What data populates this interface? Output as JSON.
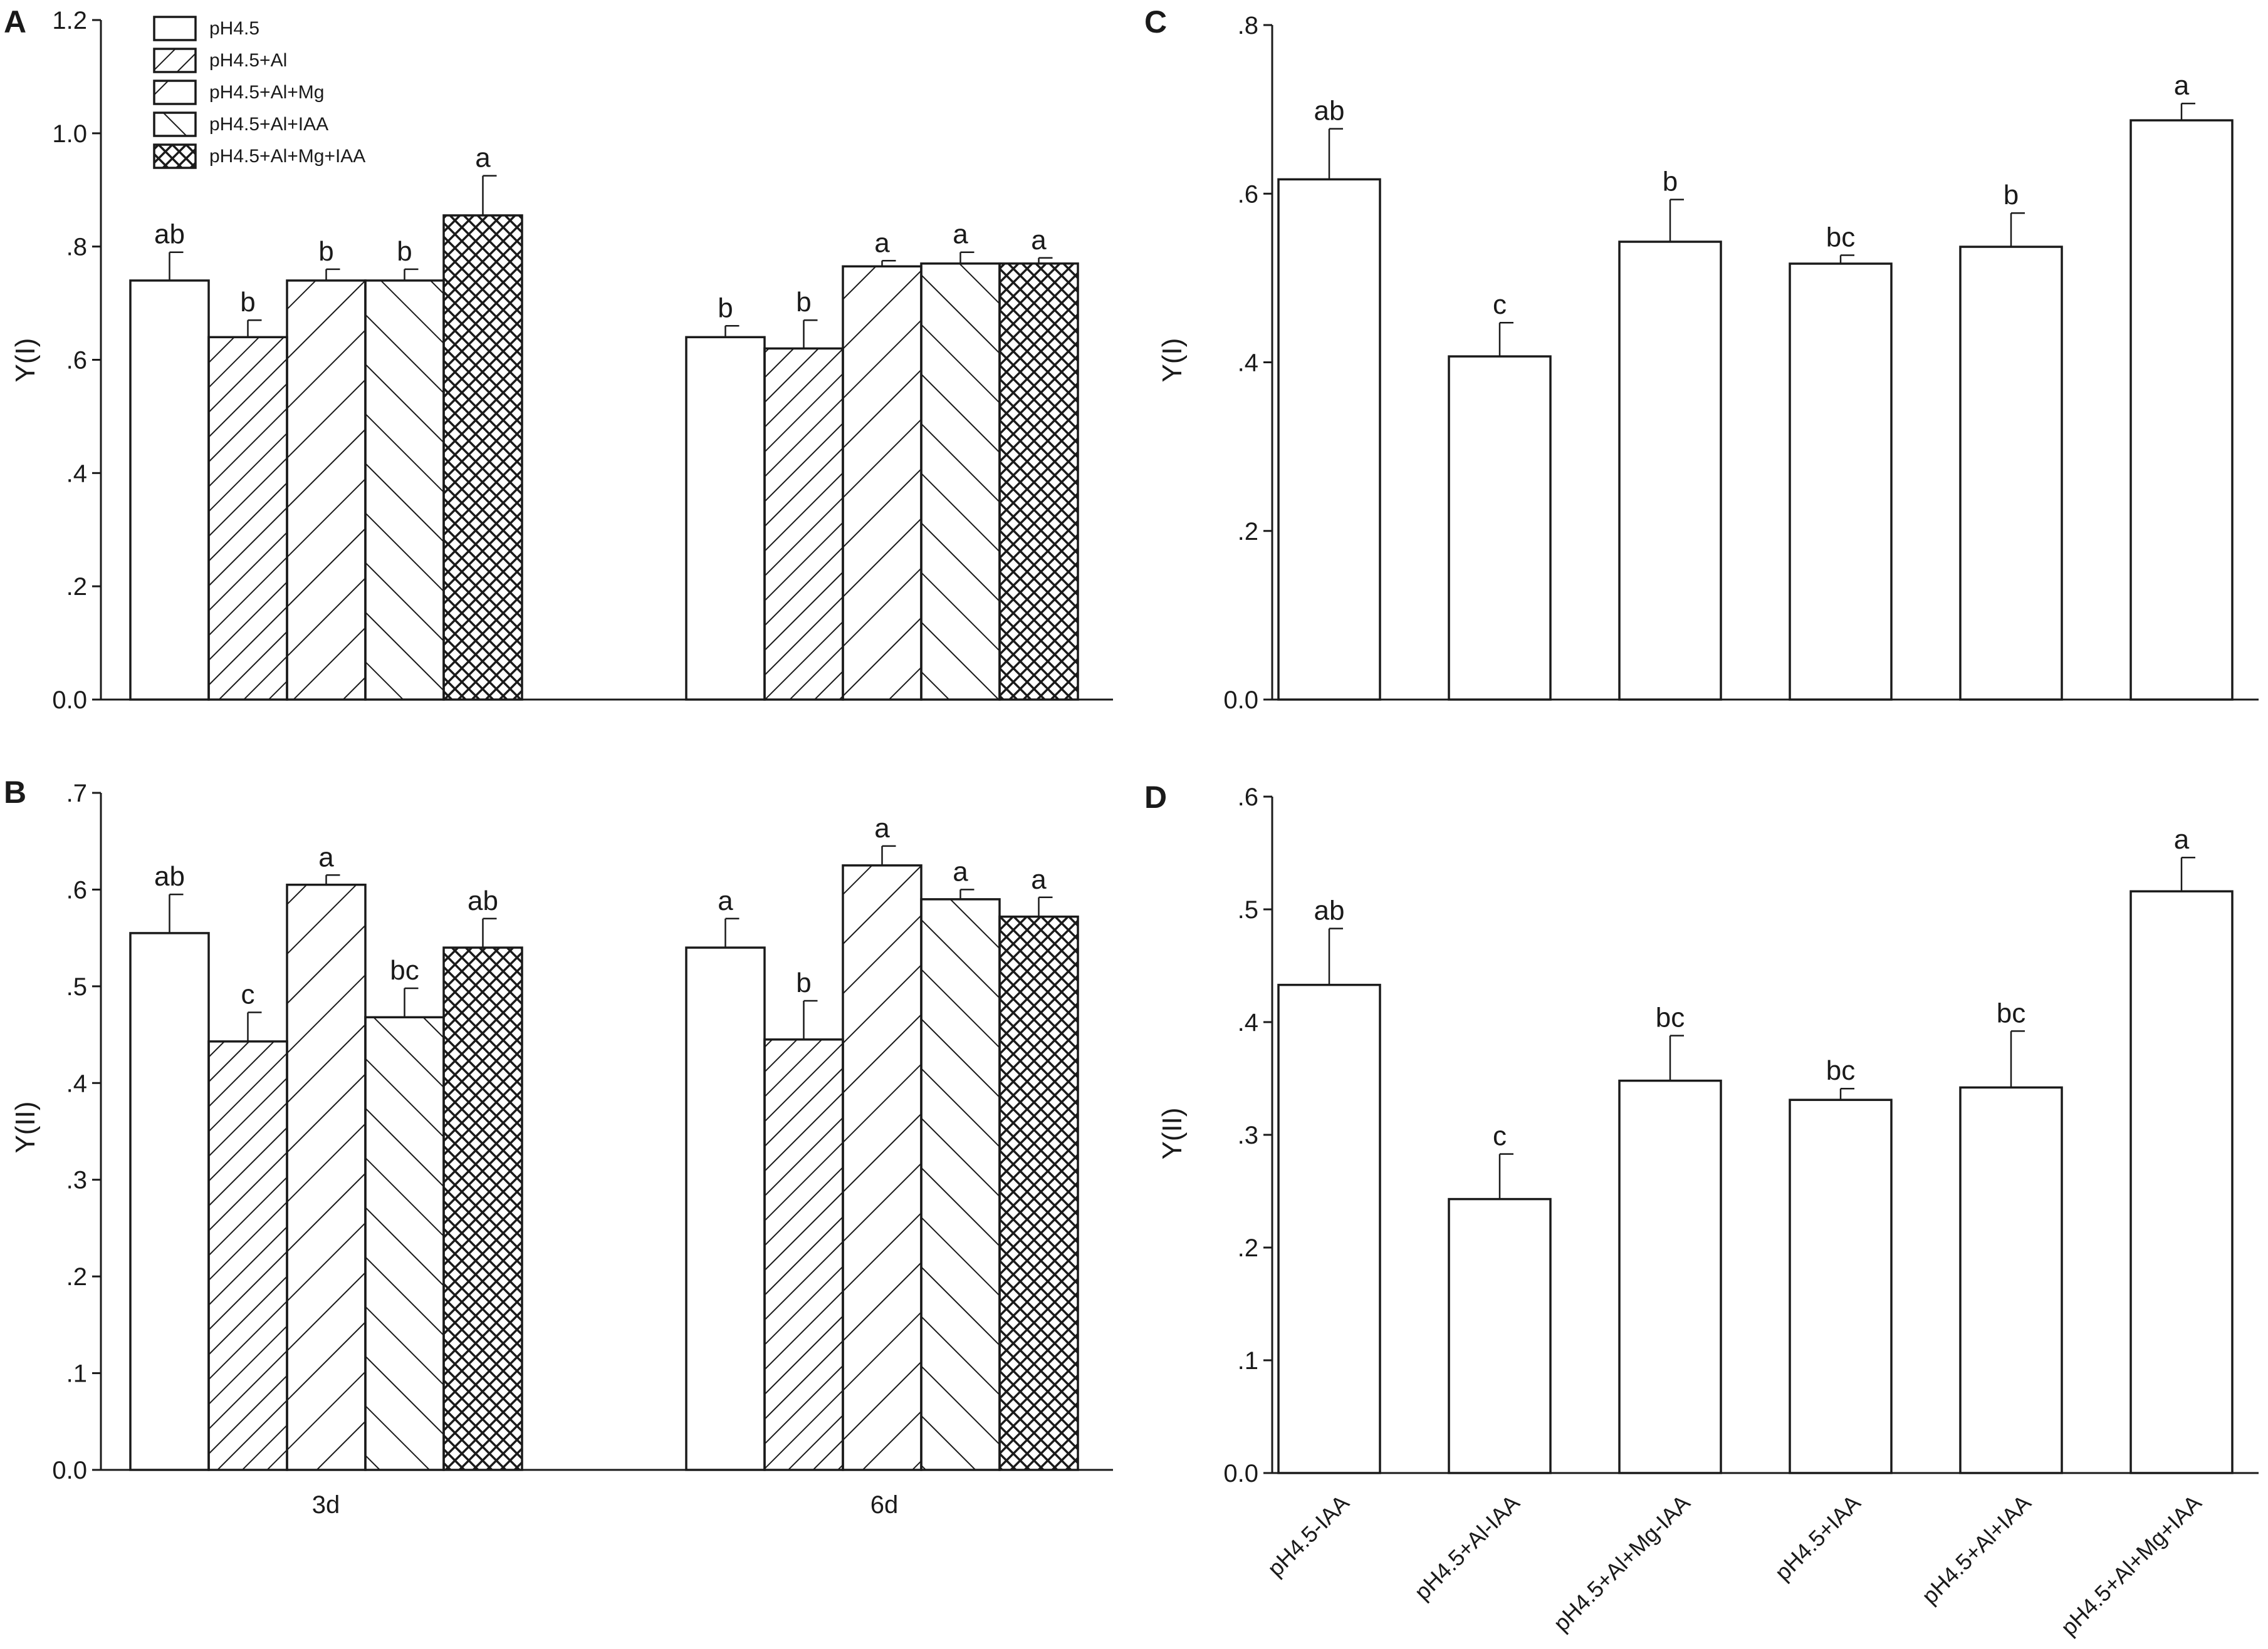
{
  "legend": {
    "items": [
      "pH4.5",
      "pH4.5+Al",
      "pH4.5+Al+Mg",
      "pH4.5+Al+IAA",
      "pH4.5+Al+Mg+IAA"
    ]
  },
  "chart_data": [
    {
      "panel": "A",
      "type": "bar",
      "ylabel": "Y(I)",
      "ylim": [
        0.0,
        1.2
      ],
      "yticks": [
        "0.0",
        ".2",
        ".4",
        ".6",
        ".8",
        "1.0",
        "1.2"
      ],
      "categories": [
        "3d",
        "6d"
      ],
      "series": [
        {
          "name": "pH4.5",
          "values": [
            0.74,
            0.64
          ],
          "errors": [
            0.05,
            0.02
          ],
          "letters": [
            "ab",
            "b"
          ]
        },
        {
          "name": "pH4.5+Al",
          "values": [
            0.64,
            0.62
          ],
          "errors": [
            0.03,
            0.05
          ],
          "letters": [
            "b",
            "b"
          ]
        },
        {
          "name": "pH4.5+Al+Mg",
          "values": [
            0.74,
            0.765
          ],
          "errors": [
            0.02,
            0.01
          ],
          "letters": [
            "b",
            "a"
          ]
        },
        {
          "name": "pH4.5+Al+IAA",
          "values": [
            0.74,
            0.77
          ],
          "errors": [
            0.02,
            0.02
          ],
          "letters": [
            "b",
            "a"
          ]
        },
        {
          "name": "pH4.5+Al+Mg+IAA",
          "values": [
            0.855,
            0.77
          ],
          "errors": [
            0.07,
            0.01
          ],
          "letters": [
            "a",
            "a"
          ]
        }
      ]
    },
    {
      "panel": "B",
      "type": "bar",
      "ylabel": "Y(II)",
      "ylim": [
        0.0,
        0.7
      ],
      "yticks": [
        "0.0",
        ".1",
        ".2",
        ".3",
        ".4",
        ".5",
        ".6",
        ".7"
      ],
      "categories": [
        "3d",
        "6d"
      ],
      "series": [
        {
          "name": "pH4.5",
          "values": [
            0.555,
            0.54
          ],
          "errors": [
            0.04,
            0.03
          ],
          "letters": [
            "ab",
            "a"
          ]
        },
        {
          "name": "pH4.5+Al",
          "values": [
            0.443,
            0.445
          ],
          "errors": [
            0.03,
            0.04
          ],
          "letters": [
            "c",
            "b"
          ]
        },
        {
          "name": "pH4.5+Al+Mg",
          "values": [
            0.605,
            0.625
          ],
          "errors": [
            0.01,
            0.02
          ],
          "letters": [
            "a",
            "a"
          ]
        },
        {
          "name": "pH4.5+Al+IAA",
          "values": [
            0.468,
            0.59
          ],
          "errors": [
            0.03,
            0.01
          ],
          "letters": [
            "bc",
            "a"
          ]
        },
        {
          "name": "pH4.5+Al+Mg+IAA",
          "values": [
            0.54,
            0.572
          ],
          "errors": [
            0.03,
            0.02
          ],
          "letters": [
            "ab",
            "a"
          ]
        }
      ]
    },
    {
      "panel": "C",
      "type": "bar",
      "ylabel": "Y(I)",
      "ylim": [
        0.0,
        0.8
      ],
      "yticks": [
        "0.0",
        ".2",
        ".4",
        ".6",
        ".8"
      ],
      "categories": [
        "pH4.5-IAA",
        "pH4.5+Al-IAA",
        "pH4.5+Al+Mg-IAA",
        "pH4.5+IAA",
        "pH4.5+Al+IAA",
        "pH4.5+Al+Mg+IAA"
      ],
      "values": [
        0.617,
        0.407,
        0.543,
        0.517,
        0.537,
        0.687
      ],
      "errors": [
        0.06,
        0.04,
        0.05,
        0.01,
        0.04,
        0.02
      ],
      "letters": [
        "ab",
        "c",
        "b",
        "bc",
        "b",
        "a"
      ]
    },
    {
      "panel": "D",
      "type": "bar",
      "ylabel": "Y(II)",
      "ylim": [
        0.0,
        0.6
      ],
      "yticks": [
        "0.0",
        ".1",
        ".2",
        ".3",
        ".4",
        ".5",
        ".6"
      ],
      "categories": [
        "pH4.5-IAA",
        "pH4.5+Al-IAA",
        "pH4.5+Al+Mg-IAA",
        "pH4.5+IAA",
        "pH4.5+Al+IAA",
        "pH4.5+Al+Mg+IAA"
      ],
      "values": [
        0.433,
        0.243,
        0.348,
        0.331,
        0.342,
        0.516
      ],
      "errors": [
        0.05,
        0.04,
        0.04,
        0.01,
        0.05,
        0.03
      ],
      "letters": [
        "ab",
        "c",
        "bc",
        "bc",
        "bc",
        "a"
      ]
    }
  ]
}
